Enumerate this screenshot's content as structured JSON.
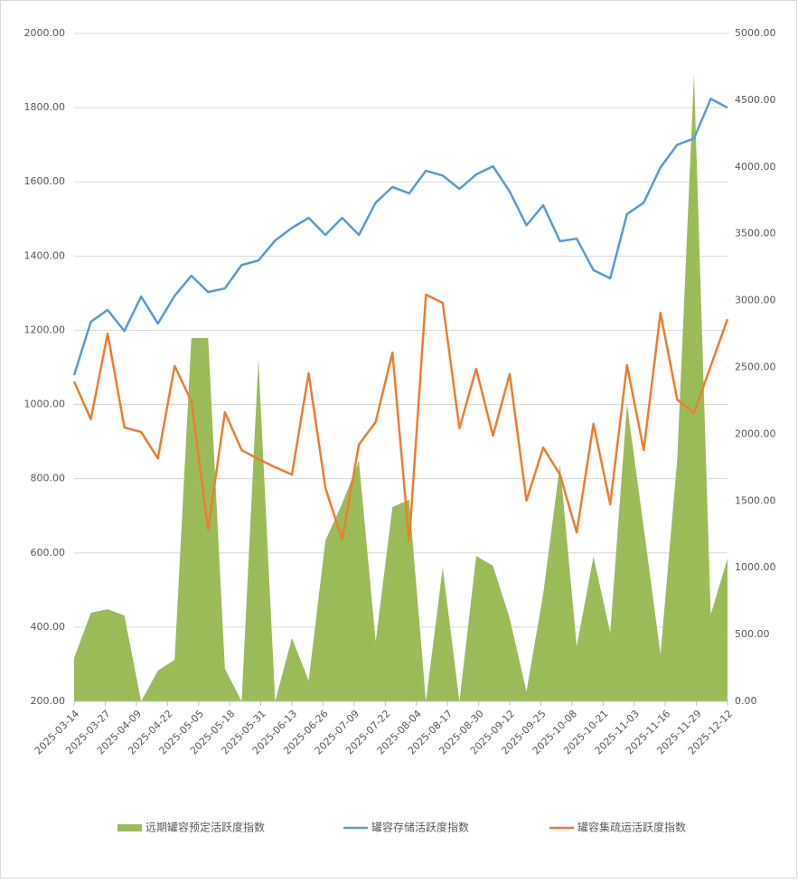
{
  "chart_data": {
    "type": "line",
    "x": [
      "2025-03-14",
      "2025-03-21",
      "2025-03-28",
      "2025-04-04",
      "2025-04-11",
      "2025-04-18",
      "2025-04-25",
      "2025-05-02",
      "2025-05-09",
      "2025-05-16",
      "2025-05-23",
      "2025-05-30",
      "2025-06-06",
      "2025-06-13",
      "2025-06-20",
      "2025-06-27",
      "2025-07-04",
      "2025-07-11",
      "2025-07-18",
      "2025-07-25",
      "2025-08-01",
      "2025-08-08",
      "2025-08-15",
      "2025-08-22",
      "2025-08-29",
      "2025-09-05",
      "2025-09-12",
      "2025-09-19",
      "2025-09-26",
      "2025-10-03",
      "2025-10-10",
      "2025-10-17",
      "2025-10-24",
      "2025-10-31",
      "2025-11-07",
      "2025-11-14",
      "2025-11-21",
      "2025-11-28",
      "2025-12-05",
      "2025-12-12"
    ],
    "xlim": [
      "2025-03-14",
      "2025-12-12"
    ],
    "xticks": [
      "2025-03-14",
      "2025-03-27",
      "2025-04-09",
      "2025-04-22",
      "2025-05-05",
      "2025-05-18",
      "2025-05-31",
      "2025-06-13",
      "2025-06-26",
      "2025-07-09",
      "2025-07-22",
      "2025-08-04",
      "2025-08-17",
      "2025-08-30",
      "2025-09-12",
      "2025-09-25",
      "2025-10-08",
      "2025-10-21",
      "2025-11-03",
      "2025-11-16",
      "2025-11-29",
      "2025-12-12"
    ],
    "ylim": [
      200,
      2000
    ],
    "yticks": [
      {
        "value": 200,
        "label": "200.00"
      },
      {
        "value": 400,
        "label": "400.00"
      },
      {
        "value": 600,
        "label": "600.00"
      },
      {
        "value": 800,
        "label": "800.00"
      },
      {
        "value": 1000,
        "label": "1000.00"
      },
      {
        "value": 1200,
        "label": "1200.00"
      },
      {
        "value": 1400,
        "label": "1400.00"
      },
      {
        "value": 1600,
        "label": "1600.00"
      },
      {
        "value": 1800,
        "label": "1800.00"
      },
      {
        "value": 2000,
        "label": "2000.00"
      }
    ],
    "y2lim": [
      0,
      5000
    ],
    "y2ticks": [
      {
        "value": 0,
        "label": "0.00"
      },
      {
        "value": 500,
        "label": "500.00"
      },
      {
        "value": 1000,
        "label": "1000.00"
      },
      {
        "value": 1500,
        "label": "1500.00"
      },
      {
        "value": 2000,
        "label": "2000.00"
      },
      {
        "value": 2500,
        "label": "2500.00"
      },
      {
        "value": 3000,
        "label": "3000.00"
      },
      {
        "value": 3500,
        "label": "3500.00"
      },
      {
        "value": 4000,
        "label": "4000.00"
      },
      {
        "value": 4500,
        "label": "4500.00"
      },
      {
        "value": 5000,
        "label": "5000.00"
      }
    ],
    "grid": true,
    "legend": "bottom",
    "series": [
      {
        "name": "远期罐容预定活跃度指数",
        "color": "#9bbb59",
        "kind": "area",
        "axis": "y2",
        "values": [
          325,
          663,
          690,
          643,
          0,
          230,
          311,
          2720,
          2720,
          244,
          0,
          2564,
          0,
          474,
          156,
          1204,
          1482,
          1800,
          447,
          1455,
          1509,
          0,
          1001,
          0,
          1089,
          1015,
          622,
          74,
          805,
          1773,
          413,
          1083,
          514,
          2226,
          1299,
          352,
          1813,
          4696,
          650,
          1069
        ]
      },
      {
        "name": "罐容存储活跃度指数",
        "color": "#5b9bd5",
        "kind": "line",
        "values": [
          1079,
          1223,
          1255,
          1198,
          1291,
          1218,
          1293,
          1347,
          1303,
          1313,
          1376,
          1388,
          1442,
          1476,
          1503,
          1457,
          1503,
          1457,
          1544,
          1586,
          1569,
          1630,
          1617,
          1581,
          1620,
          1642,
          1574,
          1483,
          1537,
          1440,
          1447,
          1362,
          1340,
          1513,
          1544,
          1639,
          1700,
          1717,
          1824,
          1800
        ]
      },
      {
        "name": "罐容集疏运活跃度指数",
        "color": "#ed7d31",
        "kind": "line",
        "values": [
          1062,
          960,
          1191,
          938,
          926,
          855,
          1104,
          1009,
          663,
          979,
          877,
          853,
          831,
          811,
          1084,
          775,
          636,
          892,
          953,
          1140,
          631,
          1296,
          1274,
          936,
          1096,
          916,
          1082,
          741,
          884,
          811,
          655,
          948,
          731,
          1106,
          877,
          1247,
          1013,
          977,
          1104,
          1230
        ]
      }
    ]
  }
}
